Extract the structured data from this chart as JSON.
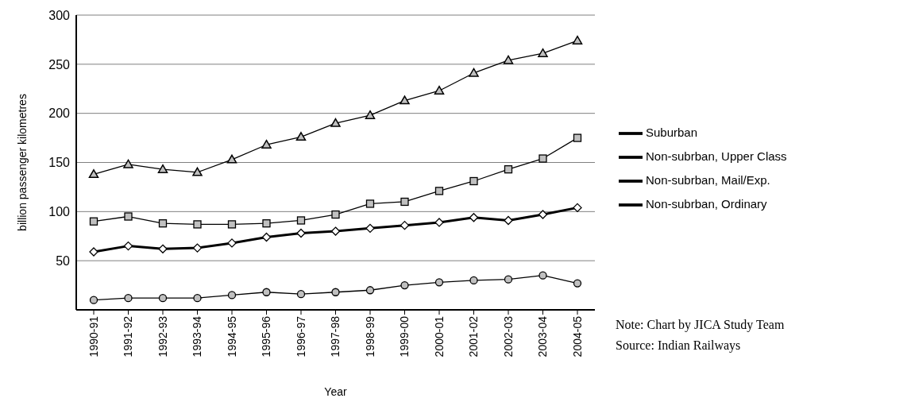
{
  "chart_data": {
    "type": "line",
    "ylabel": "billion passenger kilometres",
    "xlabel": "Year",
    "categories": [
      "1990-91",
      "1991-92",
      "1992-93",
      "1993-94",
      "1994-95",
      "1995-96",
      "1996-97",
      "1997-98",
      "1998-99",
      "1999-00",
      "2000-01",
      "2001-02",
      "2002-03",
      "2003-04",
      "2004-05"
    ],
    "series": [
      {
        "name": "Suburban",
        "color": "#000000",
        "marker": "diamond",
        "values": [
          59,
          65,
          62,
          63,
          68,
          74,
          78,
          80,
          83,
          86,
          89,
          94,
          91,
          97,
          104
        ]
      },
      {
        "name": "Non-subrban, Upper Class",
        "color": "#000000",
        "marker": "circle",
        "values": [
          10,
          12,
          12,
          12,
          15,
          18,
          16,
          18,
          20,
          25,
          28,
          30,
          31,
          35,
          27
        ]
      },
      {
        "name": "Non-subrban, Mail/Exp.",
        "color": "#000000",
        "marker": "triangle",
        "values": [
          138,
          148,
          143,
          140,
          153,
          168,
          176,
          190,
          198,
          213,
          223,
          241,
          254,
          261,
          274
        ]
      },
      {
        "name": "Non-subrban, Ordinary",
        "color": "#000000",
        "marker": "square",
        "values": [
          90,
          95,
          88,
          87,
          87,
          88,
          91,
          97,
          108,
          110,
          121,
          131,
          143,
          154,
          175
        ]
      }
    ],
    "ylim": [
      0,
      300
    ],
    "yticks": [
      50,
      100,
      150,
      200,
      250,
      300
    ],
    "grid": "y",
    "legend": "right",
    "annotations": [
      "Note: Chart by JICA Study Team",
      "Source: Indian Railways"
    ]
  }
}
